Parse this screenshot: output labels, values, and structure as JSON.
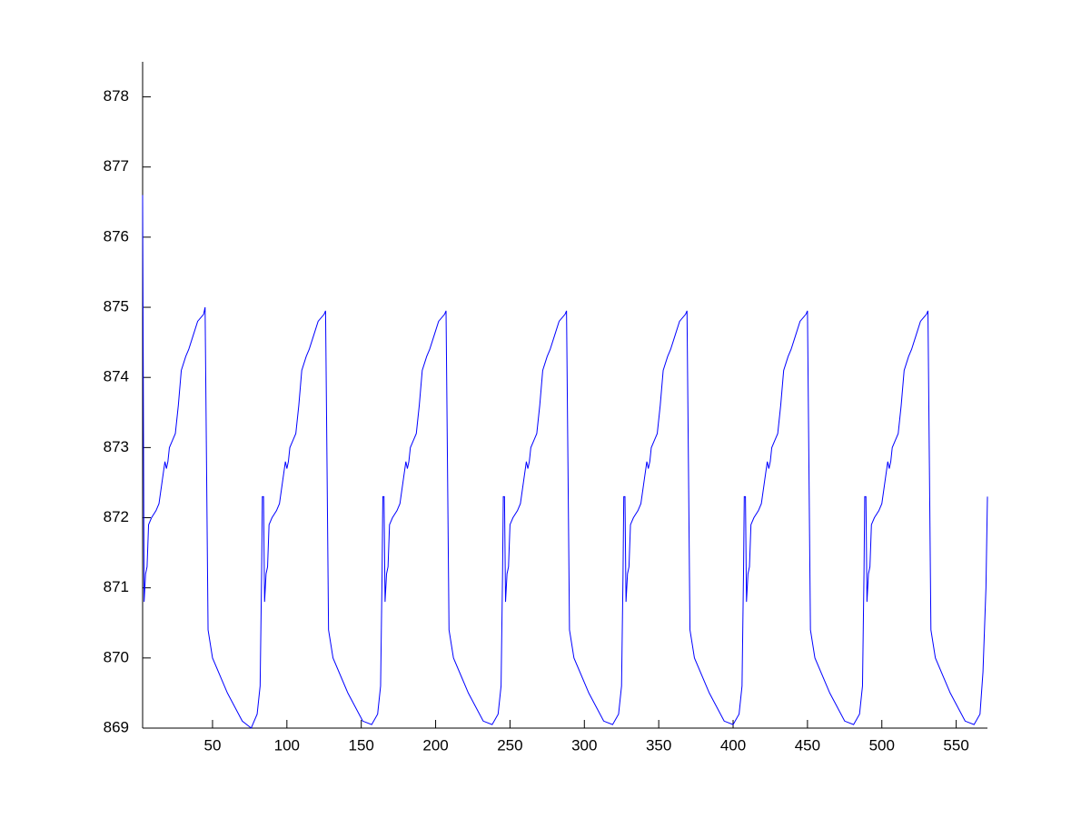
{
  "chart_data": {
    "type": "line",
    "color": "#0000ff",
    "xlim": [
      3,
      571
    ],
    "ylim": [
      869,
      878.5
    ],
    "xticks": [
      50,
      100,
      150,
      200,
      250,
      300,
      350,
      400,
      450,
      500,
      550
    ],
    "yticks": [
      869,
      870,
      871,
      872,
      873,
      874,
      875,
      876,
      877,
      878
    ],
    "x": [
      3,
      4,
      5,
      6,
      7,
      9,
      12,
      14,
      16,
      18,
      19,
      20,
      21,
      23,
      25,
      27,
      29,
      32,
      34,
      37,
      40,
      44,
      45,
      46,
      47,
      50,
      60,
      70,
      76,
      80,
      82,
      83,
      83.5,
      84.3,
      85,
      86,
      87,
      88,
      90,
      93,
      95,
      97,
      99,
      100,
      101,
      102,
      104,
      106,
      108,
      110,
      113,
      115,
      118,
      121,
      125,
      126,
      127,
      128,
      131,
      141,
      151,
      157,
      161,
      163,
      164,
      164.5,
      165.3,
      166,
      167,
      168,
      169,
      171,
      174,
      176,
      178,
      180,
      181,
      182,
      183,
      185,
      187,
      189,
      191,
      194,
      196,
      199,
      202,
      206,
      207,
      208,
      209,
      212,
      222,
      232,
      238,
      242,
      244,
      245,
      245.5,
      246.3,
      247,
      248,
      249,
      250,
      252,
      255,
      257,
      259,
      261,
      262,
      263,
      264,
      266,
      268,
      270,
      272,
      275,
      277,
      280,
      283,
      287,
      288,
      289,
      290,
      293,
      303,
      313,
      319,
      323,
      325,
      326,
      326.5,
      327.3,
      328,
      329,
      330,
      331,
      333,
      336,
      338,
      340,
      342,
      343,
      344,
      345,
      347,
      349,
      351,
      353,
      356,
      358,
      361,
      364,
      368,
      369,
      370,
      371,
      374,
      384,
      394,
      400,
      404,
      406,
      407,
      407.5,
      408.3,
      409,
      410,
      411,
      412,
      414,
      417,
      419,
      421,
      423,
      424,
      425,
      426,
      428,
      430,
      432,
      434,
      437,
      439,
      442,
      445,
      449,
      450,
      451,
      452,
      455,
      465,
      475,
      481,
      485,
      487,
      488,
      488.5,
      489.3,
      490,
      491,
      492,
      493,
      495,
      498,
      500,
      502,
      504,
      505,
      506,
      507,
      509,
      511,
      513,
      515,
      518,
      520,
      523,
      526,
      530,
      531,
      532,
      533,
      536,
      546,
      556,
      562,
      566,
      568,
      570,
      571
    ],
    "values": [
      876.6,
      870.8,
      871.2,
      871.3,
      871.9,
      872.0,
      872.1,
      872.2,
      872.5,
      872.8,
      872.7,
      872.8,
      873.0,
      873.1,
      873.2,
      873.6,
      874.1,
      874.3,
      874.4,
      874.6,
      874.8,
      874.9,
      875.0,
      872.7,
      870.4,
      870.0,
      869.5,
      869.1,
      869.0,
      869.2,
      869.6,
      871.2,
      872.3,
      872.3,
      870.8,
      871.2,
      871.3,
      871.9,
      872.0,
      872.1,
      872.2,
      872.5,
      872.8,
      872.7,
      872.8,
      873.0,
      873.1,
      873.2,
      873.6,
      874.1,
      874.3,
      874.4,
      874.6,
      874.8,
      874.9,
      874.95,
      872.7,
      870.4,
      870.0,
      869.5,
      869.1,
      869.05,
      869.2,
      869.6,
      871.2,
      872.3,
      872.3,
      870.8,
      871.2,
      871.3,
      871.9,
      872.0,
      872.1,
      872.2,
      872.5,
      872.8,
      872.7,
      872.8,
      873.0,
      873.1,
      873.2,
      873.6,
      874.1,
      874.3,
      874.4,
      874.6,
      874.8,
      874.9,
      874.95,
      872.7,
      870.4,
      870.0,
      869.5,
      869.1,
      869.05,
      869.2,
      869.6,
      871.2,
      872.3,
      872.3,
      870.8,
      871.2,
      871.3,
      871.9,
      872.0,
      872.1,
      872.2,
      872.5,
      872.8,
      872.7,
      872.8,
      873.0,
      873.1,
      873.2,
      873.6,
      874.1,
      874.3,
      874.4,
      874.6,
      874.8,
      874.9,
      874.95,
      872.7,
      870.4,
      870.0,
      869.5,
      869.1,
      869.05,
      869.2,
      869.6,
      871.2,
      872.3,
      872.3,
      870.8,
      871.2,
      871.3,
      871.9,
      872.0,
      872.1,
      872.2,
      872.5,
      872.8,
      872.7,
      872.8,
      873.0,
      873.1,
      873.2,
      873.6,
      874.1,
      874.3,
      874.4,
      874.6,
      874.8,
      874.9,
      874.95,
      872.7,
      870.4,
      870.0,
      869.5,
      869.1,
      869.05,
      869.2,
      869.6,
      871.2,
      872.3,
      872.3,
      870.8,
      871.2,
      871.3,
      871.9,
      872.0,
      872.1,
      872.2,
      872.5,
      872.8,
      872.7,
      872.8,
      873.0,
      873.1,
      873.2,
      873.6,
      874.1,
      874.3,
      874.4,
      874.6,
      874.8,
      874.9,
      874.95,
      872.7,
      870.4,
      870.0,
      869.5,
      869.1,
      869.05,
      869.2,
      869.6,
      871.2,
      872.3,
      872.3,
      870.8,
      871.2,
      871.3,
      871.9,
      872.0,
      872.1,
      872.2,
      872.5,
      872.8,
      872.7,
      872.8,
      873.0,
      873.1,
      873.2,
      873.6,
      874.1,
      874.3,
      874.4,
      874.6,
      874.8,
      874.9,
      874.95,
      872.7,
      870.4,
      870.0,
      869.5,
      869.1,
      869.05,
      869.2,
      869.8,
      871.0,
      872.3
    ]
  }
}
